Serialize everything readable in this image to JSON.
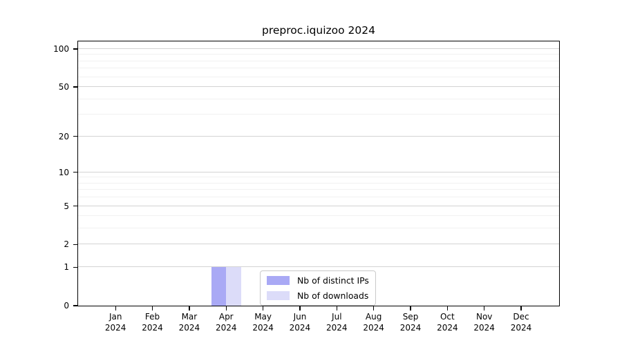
{
  "chart_data": {
    "type": "bar",
    "title": "preproc.iquizoo 2024",
    "categories": [
      {
        "month": "Jan",
        "year": "2024"
      },
      {
        "month": "Feb",
        "year": "2024"
      },
      {
        "month": "Mar",
        "year": "2024"
      },
      {
        "month": "Apr",
        "year": "2024"
      },
      {
        "month": "May",
        "year": "2024"
      },
      {
        "month": "Jun",
        "year": "2024"
      },
      {
        "month": "Jul",
        "year": "2024"
      },
      {
        "month": "Aug",
        "year": "2024"
      },
      {
        "month": "Sep",
        "year": "2024"
      },
      {
        "month": "Oct",
        "year": "2024"
      },
      {
        "month": "Nov",
        "year": "2024"
      },
      {
        "month": "Dec",
        "year": "2024"
      }
    ],
    "series": [
      {
        "name": "Nb of distinct IPs",
        "color": "#a9a9f5",
        "values": [
          0,
          0,
          0,
          1,
          0,
          0,
          0,
          0,
          0,
          0,
          0,
          0
        ]
      },
      {
        "name": "Nb of downloads",
        "color": "#dcdcf9",
        "values": [
          0,
          0,
          0,
          1,
          0,
          0,
          0,
          0,
          0,
          0,
          0,
          0
        ]
      }
    ],
    "xlabel": "",
    "ylabel": "",
    "yscale": "log1p",
    "ylim": [
      0,
      100
    ],
    "yticks_major": [
      0,
      1,
      2,
      5,
      10,
      20,
      50,
      100
    ],
    "yticks_minor": [
      3,
      4,
      6,
      7,
      8,
      9,
      30,
      40,
      60,
      70,
      80,
      90
    ],
    "grid": "horizontal",
    "legend_position": "lower center",
    "colors": {
      "major_grid": "#d3d3d3",
      "minor_grid": "#f1f1f1",
      "spine": "#000000",
      "text": "#000000",
      "background": "#ffffff"
    }
  }
}
